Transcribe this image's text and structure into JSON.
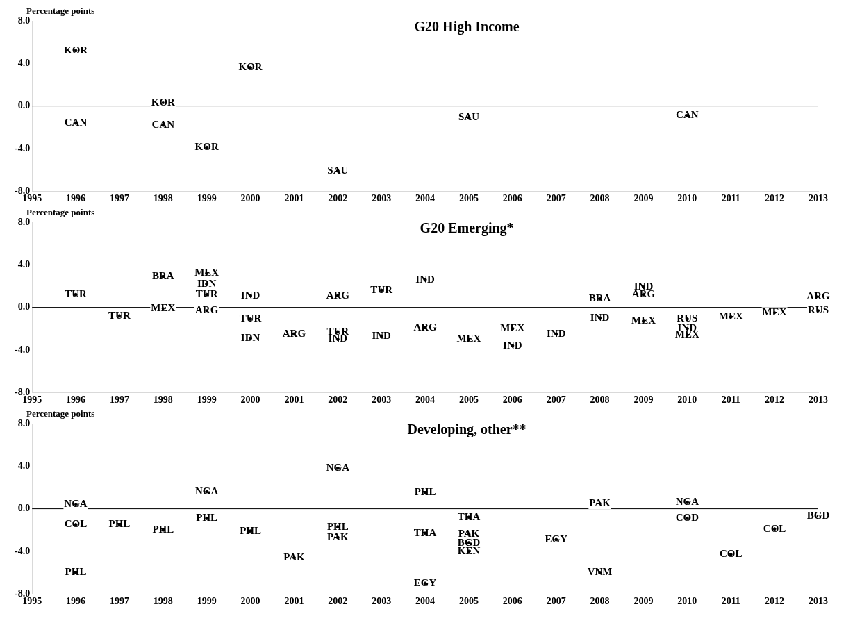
{
  "chart_data": [
    {
      "type": "scatter",
      "title": "G20 High Income",
      "ylabel": "Percentage points",
      "marker": "circle",
      "grid": false,
      "x": [
        1996,
        1996,
        1998,
        1998,
        1999,
        2000,
        2002,
        2005,
        2010
      ],
      "series": [
        {
          "color": "#000000",
          "values": [
            5.2,
            -1.6,
            0.3,
            -1.8,
            -3.9,
            3.6,
            -6.1,
            -1.1,
            -0.9
          ],
          "value_labels": [
            "KOR",
            "CAN",
            "KOR",
            "CAN",
            "KOR",
            "KOR",
            "SAU",
            "SAU",
            "CAN"
          ]
        }
      ],
      "ref_lines": [
        {
          "axis": "y",
          "value": 0,
          "color": "#000000"
        }
      ],
      "xlim": [
        1995,
        2013
      ],
      "xticks": [
        1995,
        1996,
        1997,
        1998,
        1999,
        2000,
        2001,
        2002,
        2003,
        2004,
        2005,
        2006,
        2007,
        2008,
        2009,
        2010,
        2011,
        2012,
        2013
      ],
      "ylim": [
        -8,
        8
      ],
      "yticks": [
        {
          "value": -8,
          "label": "-8.0"
        },
        {
          "value": -4,
          "label": "-4.0"
        },
        {
          "value": 0,
          "label": "0.0"
        },
        {
          "value": 4,
          "label": "4.0"
        },
        {
          "value": 8,
          "label": "8.0"
        }
      ]
    },
    {
      "type": "scatter",
      "title": "G20 Emerging*",
      "ylabel": "Percentage points",
      "marker": "circle",
      "grid": false,
      "x": [
        1996,
        1997,
        1998,
        1998,
        1999,
        1999,
        1999,
        1999,
        2000,
        2000,
        2000,
        2001,
        2002,
        2002,
        2002,
        2003,
        2003,
        2004,
        2004,
        2005,
        2006,
        2006,
        2007,
        2008,
        2008,
        2009,
        2009,
        2009,
        2010,
        2010,
        2010,
        2011,
        2012,
        2013,
        2013
      ],
      "series": [
        {
          "color": "#000000",
          "values": [
            1.2,
            -0.8,
            2.9,
            -0.1,
            3.2,
            2.2,
            1.2,
            -0.3,
            1.1,
            -1.1,
            -2.9,
            -2.5,
            1.1,
            -2.3,
            -3.0,
            1.6,
            -2.7,
            2.6,
            -1.9,
            -3.0,
            -2.0,
            -3.6,
            -2.5,
            0.8,
            -1.0,
            1.9,
            1.2,
            -1.3,
            -1.1,
            -2.0,
            -2.6,
            -0.9,
            -0.5,
            1.0,
            -0.3
          ],
          "value_labels": [
            "TUR",
            "TUR",
            "BRA",
            "MEX",
            "MEX",
            "IDN",
            "TUR",
            "ARG",
            "IND",
            "TUR",
            "IDN",
            "ARG",
            "ARG",
            "TUR",
            "IND",
            "TUR",
            "IND",
            "IND",
            "ARG",
            "MEX",
            "MEX",
            "IND",
            "IND",
            "BRA",
            "IND",
            "IND",
            "ARG",
            "MEX",
            "RUS",
            "IND",
            "MEX",
            "MEX",
            "MEX",
            "ARG",
            "RUS"
          ]
        }
      ],
      "ref_lines": [
        {
          "axis": "y",
          "value": 0,
          "color": "#000000"
        }
      ],
      "xlim": [
        1995,
        2013
      ],
      "xticks": [
        1995,
        1996,
        1997,
        1998,
        1999,
        2000,
        2001,
        2002,
        2003,
        2004,
        2005,
        2006,
        2007,
        2008,
        2009,
        2010,
        2011,
        2012,
        2013
      ],
      "ylim": [
        -8,
        8
      ],
      "yticks": [
        {
          "value": -8,
          "label": "-8.0"
        },
        {
          "value": -4,
          "label": "-4.0"
        },
        {
          "value": 0,
          "label": "0.0"
        },
        {
          "value": 4,
          "label": "4.0"
        },
        {
          "value": 8,
          "label": "8.0"
        }
      ]
    },
    {
      "type": "scatter",
      "title": "Developing, other**",
      "ylabel": "Percentage points",
      "marker": "circle",
      "grid": false,
      "x": [
        1996,
        1996,
        1996,
        1997,
        1998,
        1999,
        1999,
        2000,
        2001,
        2002,
        2002,
        2002,
        2004,
        2004,
        2004,
        2005,
        2005,
        2005,
        2005,
        2007,
        2008,
        2008,
        2010,
        2010,
        2011,
        2012,
        2013
      ],
      "series": [
        {
          "color": "#000000",
          "values": [
            0.4,
            -1.5,
            -6.0,
            -1.5,
            -2.0,
            1.6,
            -0.9,
            -2.1,
            -4.6,
            3.8,
            -1.7,
            -2.7,
            1.5,
            -2.3,
            -7.0,
            -0.8,
            -2.4,
            -3.2,
            -4.0,
            -2.9,
            0.5,
            -6.0,
            0.6,
            -0.9,
            -4.3,
            -1.9,
            -0.7
          ],
          "value_labels": [
            "NGA",
            "COL",
            "PHL",
            "PHL",
            "PHL",
            "NGA",
            "PHL",
            "PHL",
            "PAK",
            "NGA",
            "PHL",
            "PAK",
            "PHL",
            "THA",
            "EGY",
            "THA",
            "PAK",
            "BGD",
            "KEN",
            "EGY",
            "PAK",
            "VNM",
            "NGA",
            "COD",
            "COL",
            "COL",
            "BGD"
          ]
        }
      ],
      "ref_lines": [
        {
          "axis": "y",
          "value": 0,
          "color": "#000000"
        }
      ],
      "xlim": [
        1995,
        2013
      ],
      "xticks": [
        1995,
        1996,
        1997,
        1998,
        1999,
        2000,
        2001,
        2002,
        2003,
        2004,
        2005,
        2006,
        2007,
        2008,
        2009,
        2010,
        2011,
        2012,
        2013
      ],
      "ylim": [
        -8,
        8
      ],
      "yticks": [
        {
          "value": -8,
          "label": "-8.0"
        },
        {
          "value": -4,
          "label": "-4.0"
        },
        {
          "value": 0,
          "label": "0.0"
        },
        {
          "value": 4,
          "label": "4.0"
        },
        {
          "value": 8,
          "label": "8.0"
        }
      ]
    }
  ]
}
